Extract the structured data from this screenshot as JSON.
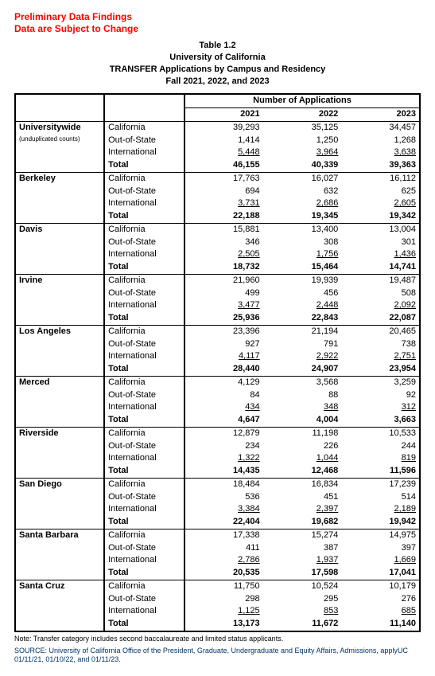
{
  "warning": {
    "line1": "Preliminary Data Findings",
    "line2": "Data are Subject to Change"
  },
  "title": {
    "line1": "Table 1.2",
    "line2": "University of California",
    "line3": "TRANSFER Applications by Campus and Residency",
    "line4": "Fall 2021, 2022, and 2023"
  },
  "header": {
    "super": "Number of Applications",
    "years": [
      "2021",
      "2022",
      "2023"
    ]
  },
  "row_labels": {
    "ca": "California",
    "oos": "Out-of-State",
    "intl": "International",
    "total": "Total"
  },
  "uw": {
    "name": "Universitywide",
    "sub": "(unduplicated counts)",
    "ca": [
      "39,293",
      "35,125",
      "34,457"
    ],
    "oos": [
      "1,414",
      "1,250",
      "1,268"
    ],
    "intl": [
      "5,448",
      "3,964",
      "3,638"
    ],
    "tot": [
      "46,155",
      "40,339",
      "39,363"
    ]
  },
  "campuses": [
    {
      "name": "Berkeley",
      "ca": [
        "17,763",
        "16,027",
        "16,112"
      ],
      "oos": [
        "694",
        "632",
        "625"
      ],
      "intl": [
        "3,731",
        "2,686",
        "2,605"
      ],
      "tot": [
        "22,188",
        "19,345",
        "19,342"
      ]
    },
    {
      "name": "Davis",
      "ca": [
        "15,881",
        "13,400",
        "13,004"
      ],
      "oos": [
        "346",
        "308",
        "301"
      ],
      "intl": [
        "2,505",
        "1,756",
        "1,436"
      ],
      "tot": [
        "18,732",
        "15,464",
        "14,741"
      ]
    },
    {
      "name": "Irvine",
      "ca": [
        "21,960",
        "19,939",
        "19,487"
      ],
      "oos": [
        "499",
        "456",
        "508"
      ],
      "intl": [
        "3,477",
        "2,448",
        "2,092"
      ],
      "tot": [
        "25,936",
        "22,843",
        "22,087"
      ]
    },
    {
      "name": "Los Angeles",
      "ca": [
        "23,396",
        "21,194",
        "20,465"
      ],
      "oos": [
        "927",
        "791",
        "738"
      ],
      "intl": [
        "4,117",
        "2,922",
        "2,751"
      ],
      "tot": [
        "28,440",
        "24,907",
        "23,954"
      ]
    },
    {
      "name": "Merced",
      "ca": [
        "4,129",
        "3,568",
        "3,259"
      ],
      "oos": [
        "84",
        "88",
        "92"
      ],
      "intl": [
        "434",
        "348",
        "312"
      ],
      "tot": [
        "4,647",
        "4,004",
        "3,663"
      ]
    },
    {
      "name": "Riverside",
      "ca": [
        "12,879",
        "11,198",
        "10,533"
      ],
      "oos": [
        "234",
        "226",
        "244"
      ],
      "intl": [
        "1,322",
        "1,044",
        "819"
      ],
      "tot": [
        "14,435",
        "12,468",
        "11,596"
      ]
    },
    {
      "name": "San Diego",
      "ca": [
        "18,484",
        "16,834",
        "17,239"
      ],
      "oos": [
        "536",
        "451",
        "514"
      ],
      "intl": [
        "3,384",
        "2,397",
        "2,189"
      ],
      "tot": [
        "22,404",
        "19,682",
        "19,942"
      ]
    },
    {
      "name": "Santa Barbara",
      "ca": [
        "17,338",
        "15,274",
        "14,975"
      ],
      "oos": [
        "411",
        "387",
        "397"
      ],
      "intl": [
        "2,786",
        "1,937",
        "1,669"
      ],
      "tot": [
        "20,535",
        "17,598",
        "17,041"
      ]
    },
    {
      "name": "Santa Cruz",
      "ca": [
        "11,750",
        "10,524",
        "10,179"
      ],
      "oos": [
        "298",
        "295",
        "276"
      ],
      "intl": [
        "1,125",
        "853",
        "685"
      ],
      "tot": [
        "13,173",
        "11,672",
        "11,140"
      ]
    }
  ],
  "footnote": "Note: Transfer category includes second baccalaureate and limited status applicants.",
  "source": "SOURCE: University of California Office of the President, Graduate, Undergraduate and Equity Affairs, Admissions, applyUC 01/11/21, 01/10/22, and 01/11/23."
}
